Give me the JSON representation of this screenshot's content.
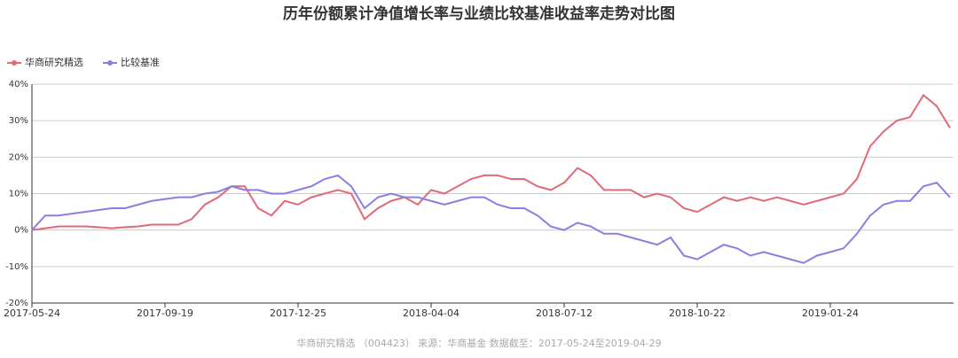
{
  "chart_data": {
    "type": "line",
    "title": "历年份额累计净值增长率与业绩比较基准收益率走势对比图",
    "source": "华商研究精选 （004423） 来源：华商基金 数据截至：2017-05-24至2019-04-29",
    "categories": [
      "2017-05-24",
      null,
      null,
      null,
      null,
      null,
      null,
      null,
      null,
      null,
      "2017-09-19",
      null,
      null,
      null,
      null,
      null,
      null,
      null,
      null,
      null,
      "2017-12-25",
      null,
      null,
      null,
      null,
      null,
      null,
      null,
      null,
      null,
      "2018-04-04",
      null,
      null,
      null,
      null,
      null,
      null,
      null,
      null,
      null,
      "2018-07-12",
      null,
      null,
      null,
      null,
      null,
      null,
      null,
      null,
      null,
      "2018-10-22",
      null,
      null,
      null,
      null,
      null,
      null,
      null,
      null,
      null,
      "2019-01-24",
      null,
      null,
      null,
      null,
      null,
      null,
      null,
      null,
      null
    ],
    "series": [
      {
        "name": "华商研究精选",
        "color": "#e06a78",
        "values": [
          0,
          0.5,
          1,
          1,
          1,
          0.8,
          0.5,
          0.8,
          1,
          1.5,
          1.5,
          1.5,
          3,
          7,
          9,
          12,
          12,
          6,
          4,
          8,
          7,
          9,
          10,
          11,
          10,
          3,
          6,
          8,
          9,
          7,
          11,
          10,
          12,
          14,
          15,
          15,
          14,
          14,
          12,
          11,
          13,
          17,
          15,
          11,
          11,
          11,
          9,
          10,
          9,
          6,
          5,
          7,
          9,
          8,
          9,
          8,
          9,
          8,
          7,
          8,
          9,
          10,
          14,
          23,
          27,
          30,
          31,
          37,
          34,
          28
        ]
      },
      {
        "name": "比较基准",
        "color": "#8c7ee0",
        "values": [
          0,
          4,
          4,
          4.5,
          5,
          5.5,
          6,
          6,
          7,
          8,
          8.5,
          9,
          9,
          10,
          10.5,
          12,
          11,
          11,
          10,
          10,
          11,
          12,
          14,
          15,
          12,
          6,
          9,
          10,
          9,
          9,
          8,
          7,
          8,
          9,
          9,
          7,
          6,
          6,
          4,
          1,
          0,
          2,
          1,
          -1,
          -1,
          -2,
          -3,
          -4,
          -2,
          -7,
          -8,
          -6,
          -4,
          -5,
          -7,
          -6,
          -7,
          -8,
          -9,
          -7,
          -6,
          -5,
          -1,
          4,
          7,
          8,
          8,
          12,
          13,
          9
        ]
      }
    ],
    "ylim": [
      -20,
      40
    ],
    "yticks": [
      {
        "value": -20,
        "label": "-20%"
      },
      {
        "value": -10,
        "label": "-10%"
      },
      {
        "value": 0,
        "label": "0%"
      },
      {
        "value": 10,
        "label": "10%"
      },
      {
        "value": 20,
        "label": "20%"
      },
      {
        "value": 30,
        "label": "30%"
      },
      {
        "value": 40,
        "label": "40%"
      }
    ],
    "grid": true,
    "legend": "top-left"
  }
}
